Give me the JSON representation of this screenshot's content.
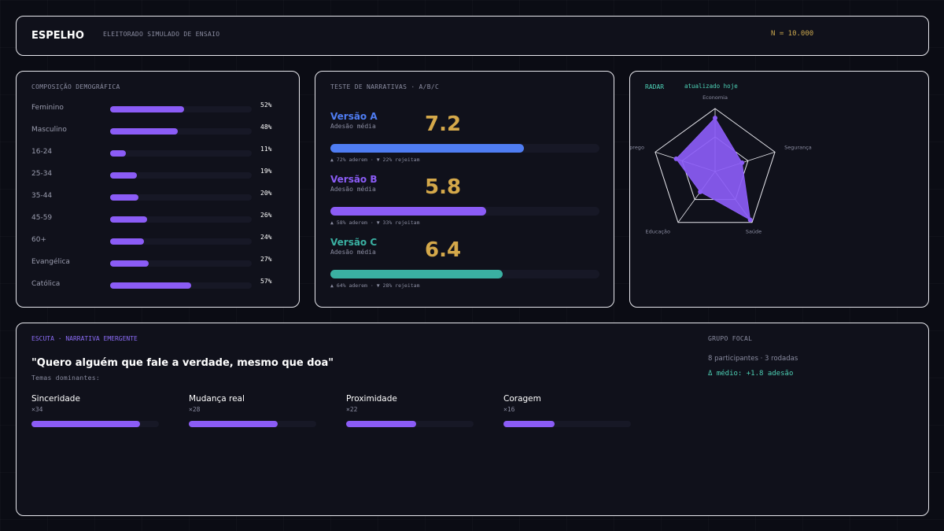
{
  "header": {
    "brand": "ESPELHO",
    "subtitle": "ELEITORADO SIMULADO DE ENSAIO",
    "sample": "N = 10.000"
  },
  "demographics": {
    "title": "COMPOSIÇÃO DEMOGRÁFICA",
    "rows": [
      {
        "label": "Feminino",
        "value": "52%",
        "pct": 52
      },
      {
        "label": "Masculino",
        "value": "48%",
        "pct": 48
      },
      {
        "label": "16-24",
        "value": "11%",
        "pct": 11
      },
      {
        "label": "25-34",
        "value": "19%",
        "pct": 19
      },
      {
        "label": "35-44",
        "value": "20%",
        "pct": 20
      },
      {
        "label": "45-59",
        "value": "26%",
        "pct": 26
      },
      {
        "label": "60+",
        "value": "24%",
        "pct": 24
      },
      {
        "label": "Evangélica",
        "value": "27%",
        "pct": 27
      },
      {
        "label": "Católica",
        "value": "57%",
        "pct": 57
      }
    ],
    "bar_color": "#8b5cf6"
  },
  "narratives": {
    "title": "TESTE DE NARRATIVAS · A/B/C",
    "items": [
      {
        "name": "Versão A",
        "sub": "Adesão média",
        "score": "7.2",
        "score_value": 7.2,
        "stat": "▲ 72% aderem · ▼ 22% rejeitam",
        "adhesion_pct": 72,
        "color": "#4f7df3"
      },
      {
        "name": "Versão B",
        "sub": "Adesão média",
        "score": "5.8",
        "score_value": 5.8,
        "stat": "▲ 58% aderem · ▼ 33% rejeitam",
        "adhesion_pct": 58,
        "color": "#8b5cf6"
      },
      {
        "name": "Versão C",
        "sub": "Adesão média",
        "score": "6.4",
        "score_value": 6.4,
        "stat": "▲ 64% aderem · ▼ 28% rejeitam",
        "adhesion_pct": 64,
        "color": "#3ab0a2"
      }
    ],
    "score_color": "#d4a84a"
  },
  "radar": {
    "title": "RADAR",
    "updated": "atualizado hoje",
    "axes": [
      "Economia",
      "Segurança",
      "Saúde",
      "Educação",
      "Emprego"
    ],
    "values": [
      0.85,
      0.45,
      0.95,
      0.4,
      0.65
    ],
    "fill_color": "#8b5cf6"
  },
  "chart_data": {
    "type": "radar",
    "categories": [
      "Economia",
      "Segurança",
      "Saúde",
      "Educação",
      "Emprego"
    ],
    "values": [
      0.85,
      0.45,
      0.95,
      0.4,
      0.65
    ]
  },
  "listening": {
    "title": "ESCUTA · NARRATIVA EMERGENTE",
    "quote": "\"Quero alguém que fale a verdade, mesmo que doa\"",
    "themes_label": "Temas dominantes:",
    "themes": [
      {
        "name": "Sinceridade",
        "count": "×34",
        "n": 34
      },
      {
        "name": "Mudança real",
        "count": "×28",
        "n": 28
      },
      {
        "name": "Proximidade",
        "count": "×22",
        "n": 22
      },
      {
        "name": "Coragem",
        "count": "×16",
        "n": 16
      }
    ],
    "theme_max": 40
  },
  "focal_group": {
    "title": "GRUPO FOCAL",
    "info": "8 participantes · 3 rodadas",
    "delta": "Δ médio: +1.8 adesão"
  }
}
